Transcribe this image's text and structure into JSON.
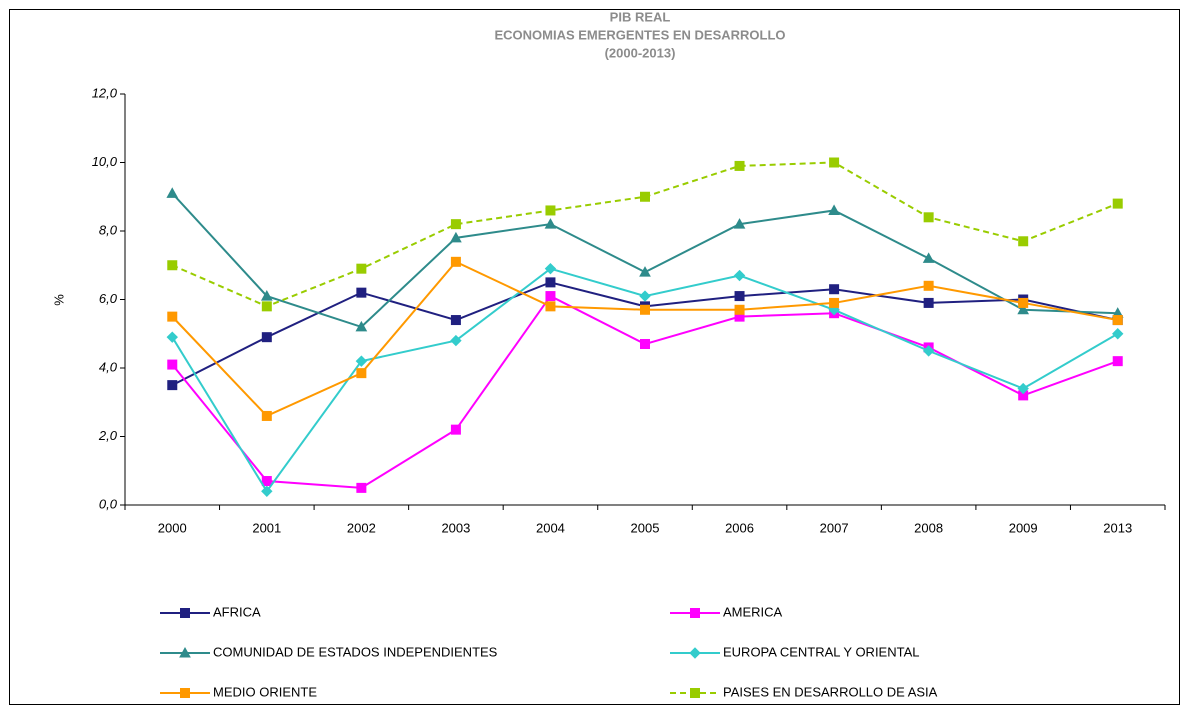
{
  "chart_data": {
    "type": "line",
    "title": [
      "PIB REAL",
      "ECONOMIAS EMERGENTES EN DESARROLLO",
      "(2000-2013)"
    ],
    "y_label": "%",
    "categories": [
      "2000",
      "2001",
      "2002",
      "2003",
      "2004",
      "2005",
      "2006",
      "2007",
      "2008",
      "2009",
      "2013"
    ],
    "ylim": [
      0,
      12
    ],
    "yticks": [
      {
        "value": 0,
        "label": "0,0"
      },
      {
        "value": 2,
        "label": "2,0"
      },
      {
        "value": 4,
        "label": "4,0"
      },
      {
        "value": 6,
        "label": "6,0"
      },
      {
        "value": 8,
        "label": "8,0"
      },
      {
        "value": 10,
        "label": "10,0"
      },
      {
        "value": 12,
        "label": "12,0"
      }
    ],
    "grid": false,
    "series": [
      {
        "name": "AFRICA",
        "color": "#202080",
        "marker": "square",
        "dashed": false,
        "values": [
          3.5,
          4.9,
          6.2,
          5.4,
          6.5,
          5.8,
          6.1,
          6.3,
          5.9,
          6.0,
          5.4
        ]
      },
      {
        "name": "AMERICA",
        "color": "#ff00ff",
        "marker": "square",
        "dashed": false,
        "values": [
          4.1,
          0.7,
          0.5,
          2.2,
          6.1,
          4.7,
          5.5,
          5.6,
          4.6,
          3.2,
          4.2
        ]
      },
      {
        "name": "COMUNIDAD DE ESTADOS INDEPENDIENTES",
        "color": "#2e8b8b",
        "marker": "triangle",
        "dashed": false,
        "values": [
          9.1,
          6.1,
          5.2,
          7.8,
          8.2,
          6.8,
          8.2,
          8.6,
          7.2,
          5.7,
          5.6
        ]
      },
      {
        "name": "EUROPA CENTRAL Y ORIENTAL",
        "color": "#33cccc",
        "marker": "diamond",
        "dashed": false,
        "values": [
          4.9,
          0.4,
          4.2,
          4.8,
          6.9,
          6.1,
          6.7,
          5.7,
          4.5,
          3.4,
          5.0
        ]
      },
      {
        "name": "MEDIO ORIENTE",
        "color": "#ff9900",
        "marker": "square",
        "dashed": false,
        "values": [
          5.5,
          2.6,
          3.85,
          7.1,
          5.8,
          5.7,
          5.7,
          5.9,
          6.4,
          5.9,
          5.4
        ]
      },
      {
        "name": "PAISES EN DESARROLLO DE ASIA",
        "color": "#99cc00",
        "marker": "square",
        "dashed": true,
        "values": [
          7.0,
          5.8,
          6.9,
          8.2,
          8.6,
          9.0,
          9.9,
          10.0,
          8.4,
          7.7,
          8.8
        ]
      }
    ]
  }
}
